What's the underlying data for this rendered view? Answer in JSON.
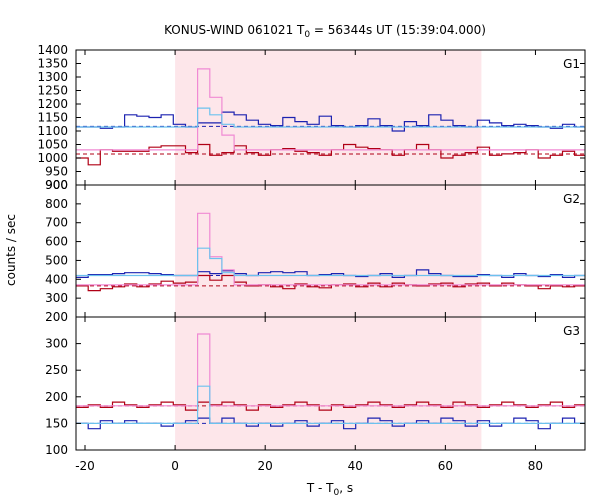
{
  "title": {
    "prefix": "KONUS-WIND 061021 T",
    "sub": "0",
    "suffix": " = 56344s UT (15:39:04.000)"
  },
  "ylabel": "counts / sec",
  "xlabel": {
    "prefix": "T - T",
    "sub": "0",
    "suffix": ", s"
  },
  "colors": {
    "dark_blue": "#1c22b0",
    "dark_red": "#b00015",
    "light_blue": "#6cc2ee",
    "pink": "#f08ad4",
    "shade": "#fde6ea"
  },
  "chart_data": {
    "type": "line",
    "x": {
      "range": [
        -22,
        91
      ],
      "ticks": [
        -20,
        0,
        20,
        40,
        60,
        80
      ]
    },
    "shaded_interval": [
      0,
      68
    ],
    "bin_edges": [
      -22,
      -19.3,
      -16.6,
      -13.9,
      -11.2,
      -8.5,
      -5.8,
      -3.1,
      -0.4,
      2.3,
      5.0,
      7.7,
      10.4,
      13.1,
      15.8,
      18.5,
      21.2,
      23.9,
      26.6,
      29.3,
      32.0,
      34.7,
      37.4,
      40.1,
      42.8,
      45.5,
      48.2,
      50.9,
      53.6,
      56.3,
      59.0,
      61.7,
      64.4,
      67.1,
      69.8,
      72.5,
      75.2,
      77.9,
      80.6,
      83.3,
      86.0,
      88.7,
      91
    ],
    "panels": [
      {
        "label": "G1",
        "ylim": [
          900,
          1400
        ],
        "yticks": [
          900,
          950,
          1000,
          1050,
          1100,
          1150,
          1200,
          1250,
          1300,
          1350,
          1400
        ],
        "series": [
          {
            "color": "dark_blue",
            "values": [
              1115,
              1115,
              1110,
              1115,
              1160,
              1155,
              1150,
              1160,
              1125,
              1115,
              1130,
              1130,
              1170,
              1160,
              1140,
              1125,
              1120,
              1150,
              1135,
              1125,
              1155,
              1120,
              1115,
              1120,
              1145,
              1120,
              1100,
              1135,
              1120,
              1160,
              1140,
              1120,
              1115,
              1140,
              1130,
              1120,
              1125,
              1120,
              1115,
              1110,
              1125,
              1115
            ]
          },
          {
            "color": "dark_red",
            "values": [
              1000,
              975,
              1030,
              1025,
              1025,
              1025,
              1040,
              1045,
              1045,
              1020,
              1050,
              1010,
              1020,
              1045,
              1020,
              1010,
              1030,
              1035,
              1025,
              1020,
              1010,
              1030,
              1050,
              1040,
              1035,
              1030,
              1010,
              1030,
              1050,
              1030,
              1000,
              1010,
              1020,
              1040,
              1010,
              1015,
              1020,
              1030,
              1000,
              1010,
              1025,
              1010
            ]
          },
          {
            "color": "pink",
            "values": [
              1030,
              1030,
              1030,
              1030,
              1030,
              1030,
              1030,
              1030,
              1030,
              1030,
              1330,
              1225,
              1085,
              1030,
              1030,
              1030,
              1030,
              1030,
              1030,
              1030,
              1030,
              1030,
              1030,
              1030,
              1030,
              1030,
              1030,
              1030,
              1030,
              1030,
              1030,
              1030,
              1030,
              1030,
              1030,
              1030,
              1030,
              1030,
              1030,
              1030,
              1030,
              1030
            ]
          },
          {
            "color": "light_blue",
            "values": [
              1115,
              1115,
              1115,
              1115,
              1115,
              1115,
              1115,
              1115,
              1115,
              1115,
              1185,
              1160,
              1125,
              1115,
              1115,
              1115,
              1115,
              1115,
              1115,
              1115,
              1115,
              1115,
              1115,
              1115,
              1115,
              1115,
              1115,
              1115,
              1115,
              1115,
              1115,
              1115,
              1115,
              1115,
              1115,
              1115,
              1115,
              1115,
              1115,
              1115,
              1115,
              1115
            ]
          }
        ],
        "background_levels": [
          {
            "color": "dark_red",
            "value": 1015,
            "dashed": true
          },
          {
            "color": "dark_blue",
            "value": 1117,
            "dashed": true
          }
        ]
      },
      {
        "label": "G2",
        "ylim": [
          200,
          900
        ],
        "yticks": [
          200,
          300,
          400,
          500,
          600,
          700,
          800,
          900
        ],
        "series": [
          {
            "color": "dark_blue",
            "values": [
              410,
              425,
              425,
              430,
              435,
              435,
              430,
              425,
              420,
              420,
              440,
              430,
              445,
              430,
              420,
              435,
              440,
              435,
              440,
              420,
              425,
              430,
              420,
              415,
              420,
              430,
              410,
              420,
              450,
              430,
              420,
              415,
              415,
              425,
              420,
              410,
              430,
              420,
              415,
              425,
              410,
              420
            ]
          },
          {
            "color": "dark_red",
            "values": [
              365,
              340,
              350,
              360,
              375,
              360,
              375,
              390,
              380,
              385,
              420,
              395,
              420,
              385,
              365,
              370,
              360,
              350,
              375,
              360,
              355,
              370,
              375,
              360,
              380,
              360,
              380,
              370,
              365,
              375,
              380,
              360,
              375,
              380,
              365,
              380,
              370,
              365,
              350,
              365,
              360,
              365
            ]
          },
          {
            "color": "pink",
            "values": [
              370,
              370,
              370,
              370,
              370,
              370,
              370,
              370,
              370,
              370,
              750,
              520,
              450,
              370,
              370,
              370,
              370,
              370,
              370,
              370,
              370,
              370,
              370,
              370,
              370,
              370,
              370,
              370,
              370,
              370,
              370,
              370,
              370,
              370,
              370,
              370,
              370,
              370,
              370,
              370,
              370,
              370
            ]
          },
          {
            "color": "light_blue",
            "values": [
              420,
              420,
              420,
              420,
              420,
              420,
              420,
              420,
              420,
              420,
              565,
              510,
              435,
              420,
              420,
              420,
              420,
              420,
              420,
              420,
              420,
              420,
              420,
              420,
              420,
              420,
              420,
              420,
              420,
              420,
              420,
              420,
              420,
              420,
              420,
              420,
              420,
              420,
              420,
              420,
              420,
              420
            ]
          }
        ],
        "background_levels": [
          {
            "color": "dark_red",
            "value": 365,
            "dashed": true
          },
          {
            "color": "dark_blue",
            "value": 420,
            "dashed": true
          }
        ]
      },
      {
        "label": "G3",
        "ylim": [
          100,
          350
        ],
        "yticks": [
          100,
          150,
          200,
          250,
          300
        ],
        "series": [
          {
            "color": "dark_blue",
            "values": [
              150,
              140,
              155,
              150,
              155,
              150,
              150,
              145,
              150,
              155,
              160,
              150,
              160,
              150,
              145,
              150,
              145,
              150,
              155,
              145,
              150,
              155,
              140,
              150,
              160,
              155,
              145,
              150,
              155,
              150,
              160,
              155,
              145,
              155,
              145,
              150,
              160,
              155,
              140,
              150,
              160,
              150
            ]
          },
          {
            "color": "dark_red",
            "values": [
              180,
              185,
              180,
              190,
              185,
              180,
              185,
              190,
              185,
              175,
              190,
              185,
              190,
              185,
              175,
              185,
              180,
              185,
              190,
              185,
              175,
              185,
              180,
              185,
              190,
              185,
              180,
              185,
              190,
              185,
              180,
              190,
              185,
              180,
              185,
              190,
              185,
              180,
              185,
              190,
              180,
              185
            ]
          },
          {
            "color": "pink",
            "values": [
              183,
              183,
              183,
              183,
              183,
              183,
              183,
              183,
              183,
              183,
              318,
              183,
              183,
              183,
              183,
              183,
              183,
              183,
              183,
              183,
              183,
              183,
              183,
              183,
              183,
              183,
              183,
              183,
              183,
              183,
              183,
              183,
              183,
              183,
              183,
              183,
              183,
              183,
              183,
              183,
              183,
              183
            ]
          },
          {
            "color": "light_blue",
            "values": [
              150,
              150,
              150,
              150,
              150,
              150,
              150,
              150,
              150,
              150,
              220,
              150,
              150,
              150,
              150,
              150,
              150,
              150,
              150,
              150,
              150,
              150,
              150,
              150,
              150,
              150,
              150,
              150,
              150,
              150,
              150,
              150,
              150,
              150,
              150,
              150,
              150,
              150,
              150,
              150,
              150,
              150
            ]
          }
        ],
        "background_levels": [
          {
            "color": "dark_red",
            "value": 183,
            "dashed": true
          },
          {
            "color": "dark_blue",
            "value": 150,
            "dashed": true
          }
        ]
      }
    ]
  }
}
